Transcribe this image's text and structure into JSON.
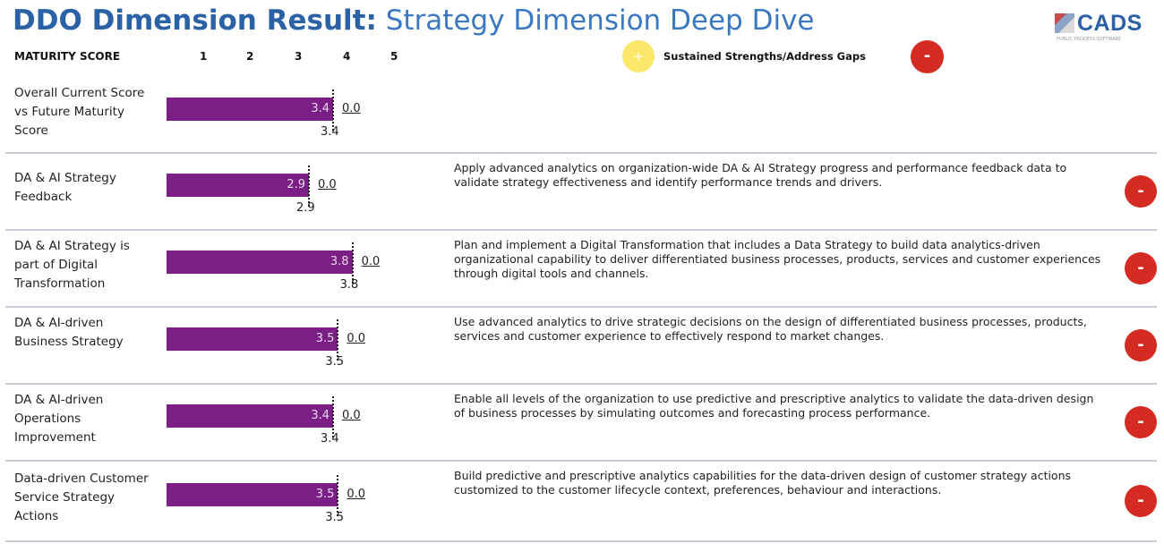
{
  "header": {
    "title_bold": "DDO Dimension Result:",
    "title_light": "Strategy Dimension Deep Dive",
    "logo_text": "CADS",
    "logo_tagline": "PUBLIC PROCESS SOFTWARE"
  },
  "legend": {
    "maturity_label": "MATURITY SCORE",
    "scale": [
      "1",
      "2",
      "3",
      "4",
      "5"
    ],
    "plus_icon": "+",
    "minus_icon": "-",
    "middle_label": "Sustained Strengths/Address Gaps"
  },
  "colors": {
    "bar": "#7b1f86",
    "title": "#2b62a6",
    "minus": "#d62b22",
    "plus": "#fbe86a"
  },
  "chart_data": {
    "type": "bar",
    "orientation": "horizontal",
    "xlim": [
      0,
      5
    ],
    "categories": [
      "Overall Current Score vs Future Maturity Score",
      "DA & AI Strategy Feedback",
      "DA & AI Strategy is part of Digital Transformation",
      "DA & AI-driven Business Strategy",
      "DA & AI-driven Operations Improvement",
      "Data-driven Customer Service Strategy Actions"
    ],
    "current": [
      3.4,
      2.9,
      3.8,
      3.5,
      3.4,
      3.5
    ],
    "future": [
      0.0,
      0.0,
      0.0,
      0.0,
      0.0,
      0.0
    ],
    "below_labels": [
      "3.4",
      "2.9",
      "3.8",
      "3.5",
      "3.4",
      "3.5"
    ],
    "current_labels": [
      "3.4",
      "2.9",
      "3.8",
      "3.5",
      "3.4",
      "3.5"
    ],
    "future_labels": [
      "0.0",
      "0.0",
      "0.0",
      "0.0",
      "0.0",
      "0.0"
    ]
  },
  "rows": [
    {
      "label": "Overall Current Score vs Future Maturity Score",
      "recommendation": "",
      "indicator": ""
    },
    {
      "label": "DA & AI Strategy Feedback",
      "recommendation": "Apply advanced analytics on organization-wide DA & AI Strategy progress and performance feedback data to validate strategy effectiveness and identify performance trends and drivers.",
      "indicator": "-"
    },
    {
      "label": "DA & AI Strategy is part of Digital Transformation",
      "recommendation": "Plan and implement a Digital Transformation that includes a Data Strategy to build data analytics-driven organizational capability to  deliver differentiated business processes, products, services and customer experiences through digital tools and channels.",
      "indicator": "-"
    },
    {
      "label": "DA & AI-driven Business Strategy",
      "recommendation": "Use advanced analytics to drive strategic decisions on the design of differentiated business processes, products, services and customer experience to effectively respond to market changes.",
      "indicator": "-"
    },
    {
      "label": "DA & AI-driven Operations Improvement",
      "recommendation": "Enable all levels of the organization to use predictive and prescriptive analytics to validate the data-driven design of business processes by simulating outcomes and forecasting process performance.",
      "indicator": "-"
    },
    {
      "label": "Data-driven Customer Service Strategy Actions",
      "recommendation": "Build predictive and prescriptive analytics capabilities for the data-driven design of  customer strategy actions customized to the customer lifecycle context, preferences, behaviour and interactions.",
      "indicator": "-"
    }
  ]
}
